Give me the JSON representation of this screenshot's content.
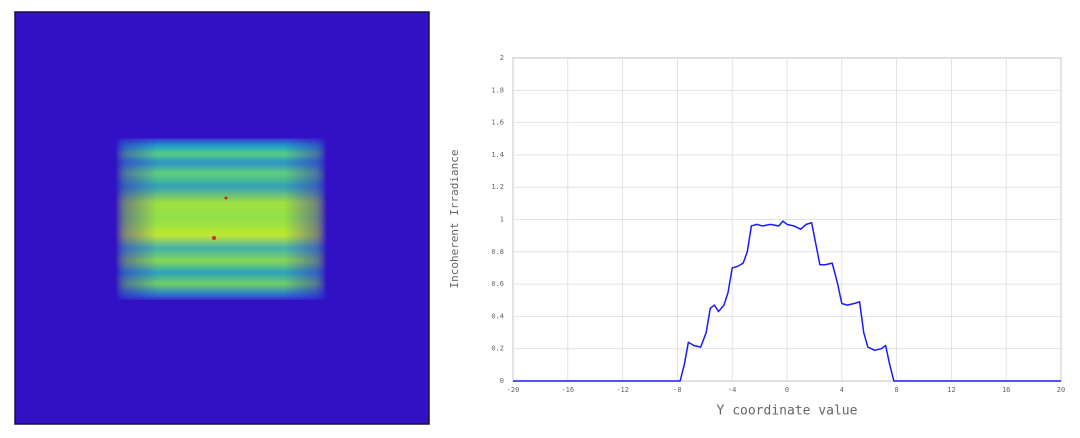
{
  "chart_data": {
    "type": "line",
    "x_label": "Y coordinate value",
    "y_label": "Incoherent Irradiance",
    "x": [
      -20,
      -7.8,
      -7.5,
      -7.2,
      -6.8,
      -6.3,
      -5.9,
      -5.6,
      -5.3,
      -5.0,
      -4.6,
      -4.3,
      -4.0,
      -3.6,
      -3.2,
      -2.9,
      -2.6,
      -2.2,
      -1.8,
      -1.2,
      -0.6,
      -0.3,
      0,
      0.5,
      1.0,
      1.4,
      1.8,
      2.1,
      2.4,
      2.8,
      3.3,
      3.7,
      4.0,
      4.4,
      4.9,
      5.3,
      5.6,
      5.9,
      6.4,
      6.9,
      7.2,
      7.5,
      7.8,
      20
    ],
    "series": [
      {
        "color": "#1a1aff",
        "values": [
          0,
          0,
          0.1,
          0.24,
          0.22,
          0.21,
          0.3,
          0.45,
          0.47,
          0.43,
          0.47,
          0.55,
          0.7,
          0.71,
          0.73,
          0.8,
          0.96,
          0.97,
          0.96,
          0.97,
          0.96,
          0.99,
          0.97,
          0.96,
          0.94,
          0.97,
          0.98,
          0.85,
          0.72,
          0.72,
          0.73,
          0.6,
          0.48,
          0.47,
          0.48,
          0.49,
          0.3,
          0.21,
          0.19,
          0.2,
          0.22,
          0.1,
          0,
          0
        ]
      }
    ],
    "xlim": [
      -20,
      20
    ],
    "xticks": [
      -20,
      -16,
      -12,
      -8,
      -4,
      0,
      4,
      8,
      12,
      16,
      20
    ],
    "ylim": [
      0,
      2
    ],
    "yticks": [
      0,
      0.2,
      0.4,
      0.6,
      0.8,
      1,
      1.2,
      1.4,
      1.6,
      1.8,
      2
    ],
    "grid": true
  }
}
